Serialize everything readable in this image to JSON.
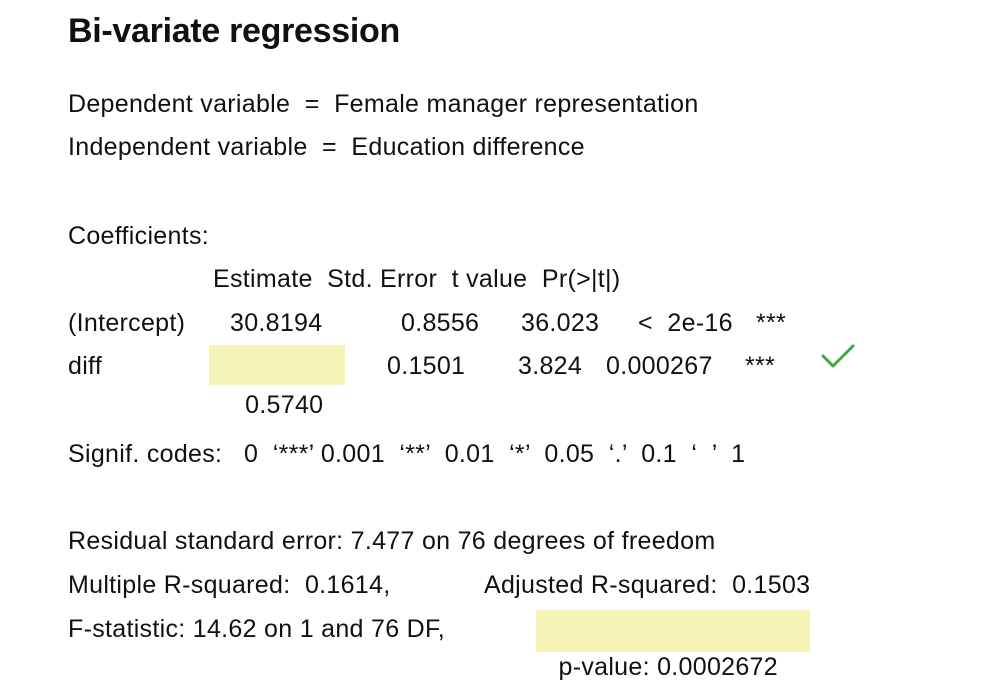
{
  "title": "Bi-variate regression",
  "variables": {
    "dependent": "Dependent variable  =  Female manager representation",
    "independent": "Independent variable  =  Education difference"
  },
  "coefficients": {
    "label": "Coefficients:",
    "header": "Estimate  Std. Error  t value  Pr(>|t|)",
    "rows": [
      {
        "name": "(Intercept)",
        "estimate": "30.8194",
        "std_error": "0.8556",
        "t_value": "36.023",
        "p_value": "<  2e-16",
        "signif": "***"
      },
      {
        "name": "diff",
        "estimate": "0.5740",
        "std_error": "0.1501",
        "t_value": "3.824",
        "p_value": "0.000267",
        "signif": "***",
        "checked": true
      }
    ]
  },
  "signif_codes": "Signif. codes:   0  ‘***’ 0.001  ‘**’  0.01  ‘*’  0.05  ‘.’  0.1  ‘  ’  1",
  "summary": {
    "residual": "Residual standard error: 7.477 on 76 degrees of freedom",
    "multiple_r2": "Multiple R-squared:  0.1614,",
    "adjusted_r2": "Adjusted R-squared:  0.1503",
    "f_stat": "F-statistic: 14.62 on 1 and 76 DF,",
    "p_value": "p-value: 0.0002672"
  },
  "colors": {
    "highlight": "#f6f3b8",
    "check": "#3cab3c"
  }
}
